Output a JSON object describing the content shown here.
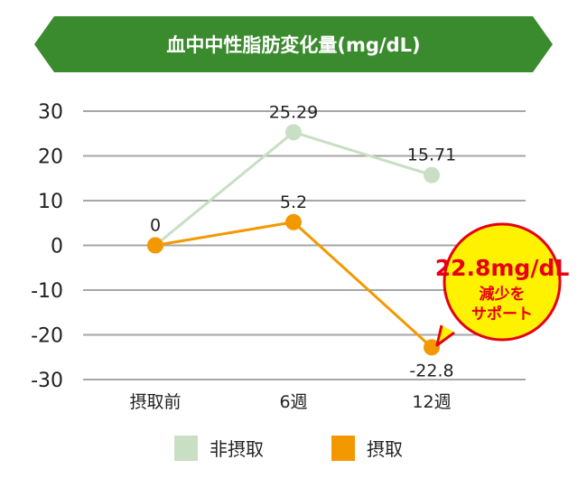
{
  "chart_data": {
    "type": "line",
    "title": "血中中性脂肪変化量(mg/dL)",
    "categories": [
      "摂取前",
      "6週",
      "12週"
    ],
    "ylim": [
      -30,
      30
    ],
    "yticks": [
      30,
      20,
      10,
      0,
      -10,
      -20,
      -30
    ],
    "ytick_labels": [
      "30",
      "20",
      "10",
      "0",
      "-10",
      "-20",
      "-30"
    ],
    "grid": true,
    "legend_position": "bottom",
    "series": [
      {
        "name": "非摂取",
        "color": "#c8dfc4",
        "values": [
          0,
          25.29,
          15.71
        ],
        "data_labels": [
          "",
          "25.29",
          "15.71"
        ]
      },
      {
        "name": "摂取",
        "color": "#f39800",
        "values": [
          0,
          5.2,
          -22.8
        ],
        "data_labels": [
          "0",
          "5.2",
          "-22.8"
        ]
      }
    ],
    "annotation": {
      "main": "22.8mg/dL",
      "line1": "減少を",
      "line2": "サポート",
      "fill": "#fff200",
      "stroke": "#e60012"
    },
    "title_banner_color": "#3a8a2e"
  }
}
